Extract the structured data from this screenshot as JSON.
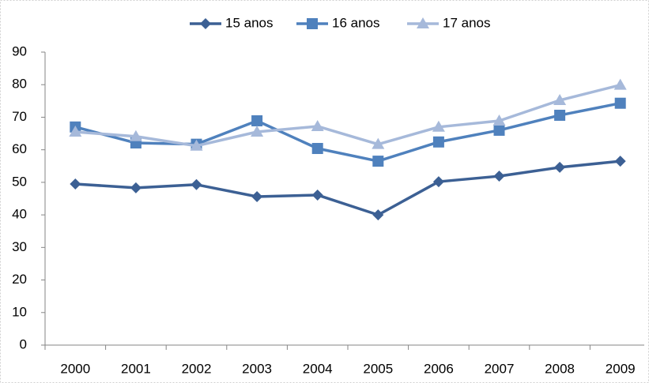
{
  "chart_data": {
    "type": "line",
    "categories": [
      "2000",
      "2001",
      "2002",
      "2003",
      "2004",
      "2005",
      "2006",
      "2007",
      "2008",
      "2009"
    ],
    "series": [
      {
        "name": "15 anos",
        "color": "#3c6094",
        "marker": "diamond",
        "values": [
          49.5,
          48.3,
          49.3,
          45.6,
          46.1,
          40,
          50.2,
          51.9,
          54.6,
          56.5
        ]
      },
      {
        "name": "16 anos",
        "color": "#4f81bd",
        "marker": "square",
        "values": [
          67,
          62.1,
          61.7,
          68.9,
          60.4,
          56.5,
          62.4,
          66,
          70.6,
          74.3
        ]
      },
      {
        "name": "17 anos",
        "color": "#a6b9da",
        "marker": "triangle",
        "values": [
          65.5,
          64.1,
          61.2,
          65.5,
          67.2,
          61.7,
          67,
          68.9,
          75.2,
          79.9
        ]
      }
    ],
    "ylim": [
      0,
      90
    ],
    "yticks": [
      0,
      10,
      20,
      30,
      40,
      50,
      60,
      70,
      80,
      90
    ],
    "grid": false,
    "legend": "top"
  }
}
